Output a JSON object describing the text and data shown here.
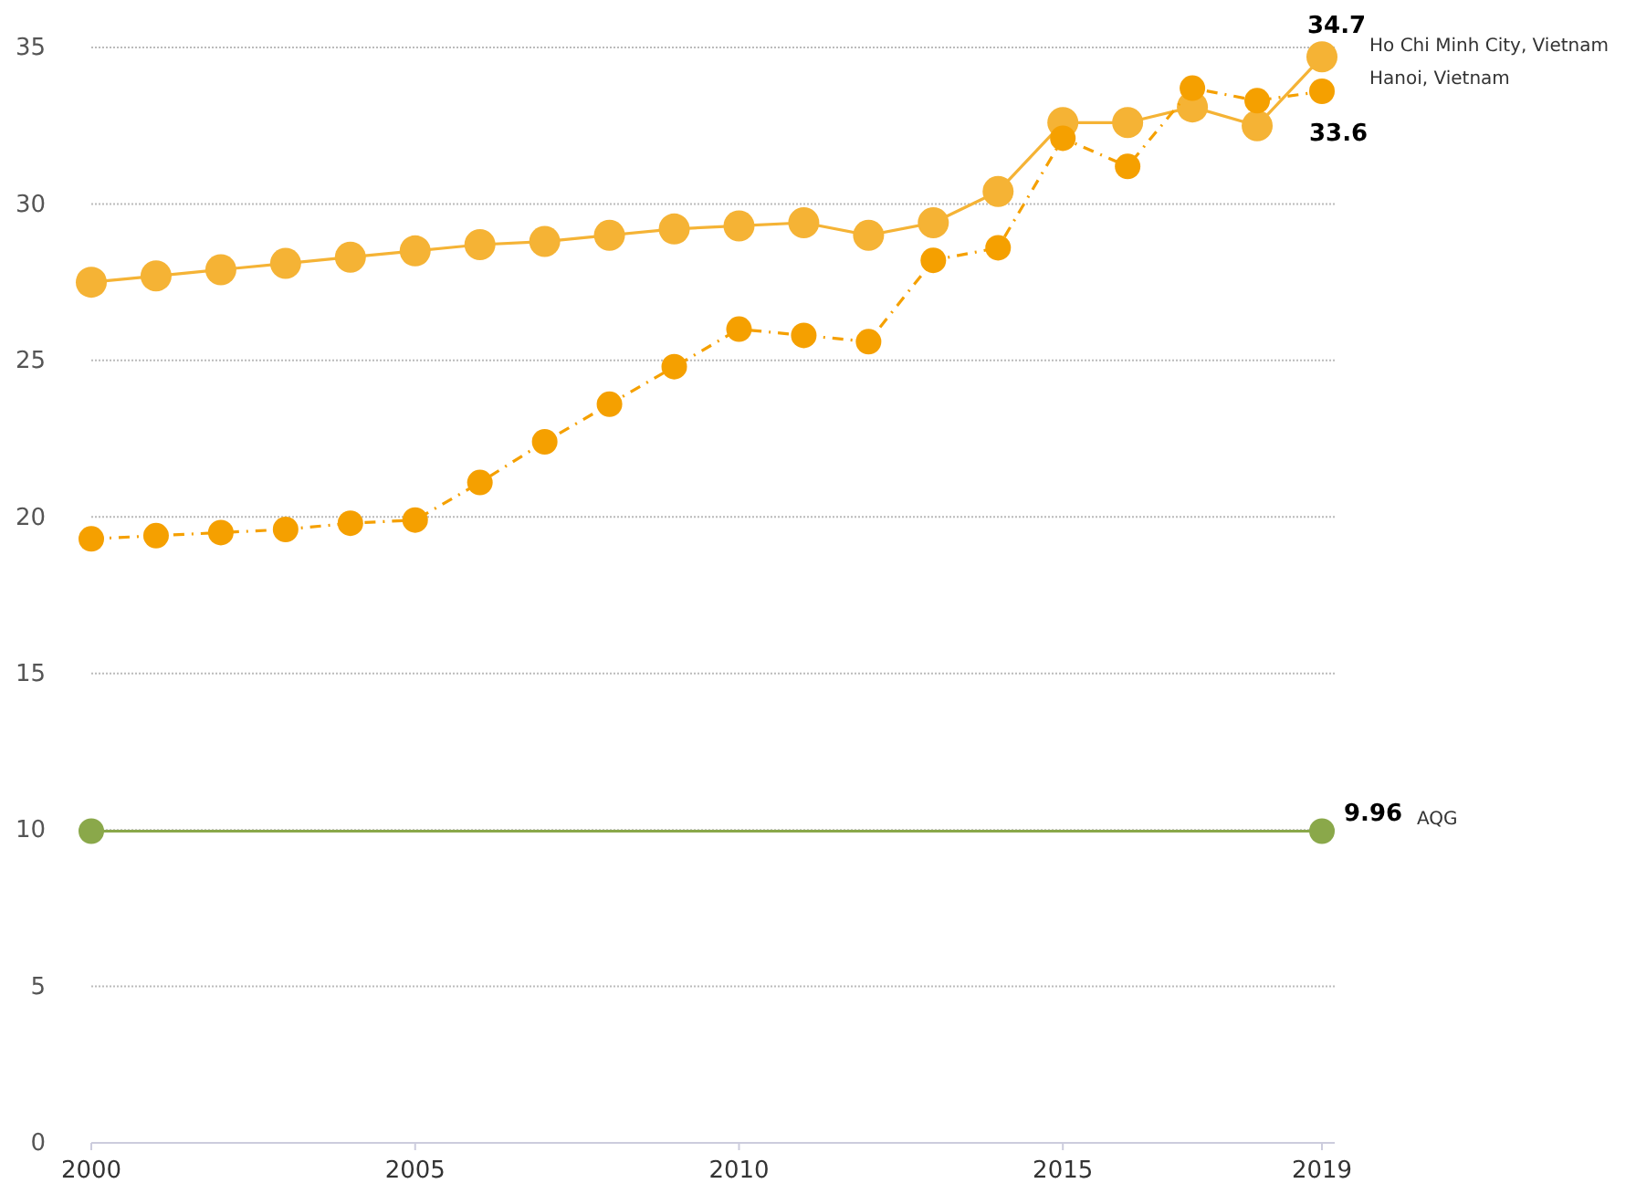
{
  "chart_data": {
    "type": "line",
    "xlim": [
      2000,
      2019
    ],
    "xticks": [
      2000,
      2005,
      2010,
      2015,
      2019
    ],
    "ylim": [
      0,
      35
    ],
    "yticks": [
      0,
      5,
      10,
      15,
      20,
      25,
      30,
      35
    ],
    "grid": "y",
    "marker": "circle",
    "series": [
      {
        "name": "Ho Chi Minh City, Vietnam",
        "color": "#f5b335",
        "line_style": "solid",
        "x": [
          2000,
          2001,
          2002,
          2003,
          2004,
          2005,
          2006,
          2007,
          2008,
          2009,
          2010,
          2011,
          2012,
          2013,
          2014,
          2015,
          2016,
          2017,
          2018,
          2019
        ],
        "values": [
          27.5,
          27.7,
          27.9,
          28.1,
          28.3,
          28.5,
          28.7,
          28.8,
          29.0,
          29.2,
          29.3,
          29.4,
          29.0,
          29.4,
          30.4,
          32.6,
          32.6,
          33.1,
          32.5,
          34.7
        ],
        "value_labels": [
          null,
          null,
          null,
          null,
          null,
          null,
          null,
          null,
          null,
          null,
          null,
          null,
          null,
          null,
          null,
          null,
          null,
          null,
          null,
          "34.7"
        ]
      },
      {
        "name": "Hanoi, Vietnam",
        "color": "#f5a000",
        "line_style": "dashed",
        "x": [
          2000,
          2001,
          2002,
          2003,
          2004,
          2005,
          2006,
          2007,
          2008,
          2009,
          2010,
          2011,
          2012,
          2013,
          2014,
          2015,
          2016,
          2017,
          2018,
          2019
        ],
        "values": [
          19.3,
          19.4,
          19.5,
          19.6,
          19.8,
          19.9,
          21.1,
          22.4,
          23.6,
          24.8,
          26.0,
          25.8,
          25.6,
          28.2,
          28.6,
          32.1,
          31.2,
          33.7,
          33.3,
          33.6
        ],
        "value_labels": [
          null,
          null,
          null,
          null,
          null,
          null,
          null,
          null,
          null,
          null,
          null,
          null,
          null,
          null,
          null,
          null,
          null,
          null,
          null,
          "33.6"
        ]
      },
      {
        "name": "AQG",
        "color": "#8aa84a",
        "line_style": "solid",
        "x": [
          2000,
          2019
        ],
        "values": [
          9.96,
          9.96
        ],
        "value_labels": [
          null,
          "9.96"
        ]
      }
    ]
  }
}
